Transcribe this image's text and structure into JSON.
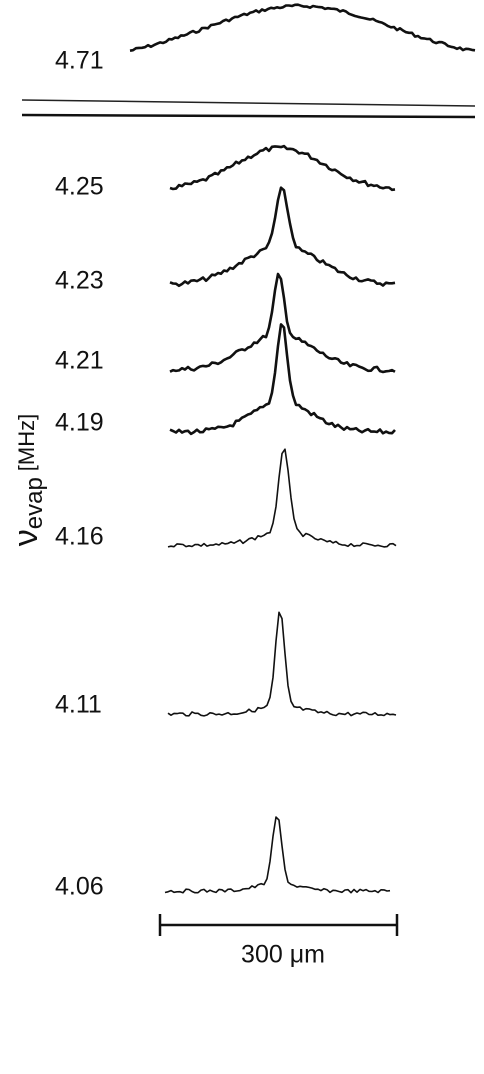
{
  "axis_label": {
    "symbol": "ν",
    "subscript": "evap",
    "unit": "[MHz]"
  },
  "traces": [
    {
      "label": "4.71"
    },
    {
      "label": "4.25"
    },
    {
      "label": "4.23"
    },
    {
      "label": "4.21"
    },
    {
      "label": "4.19"
    },
    {
      "label": "4.16"
    },
    {
      "label": "4.11"
    },
    {
      "label": "4.06"
    }
  ],
  "scale_bar": {
    "label": "300 μm"
  }
}
